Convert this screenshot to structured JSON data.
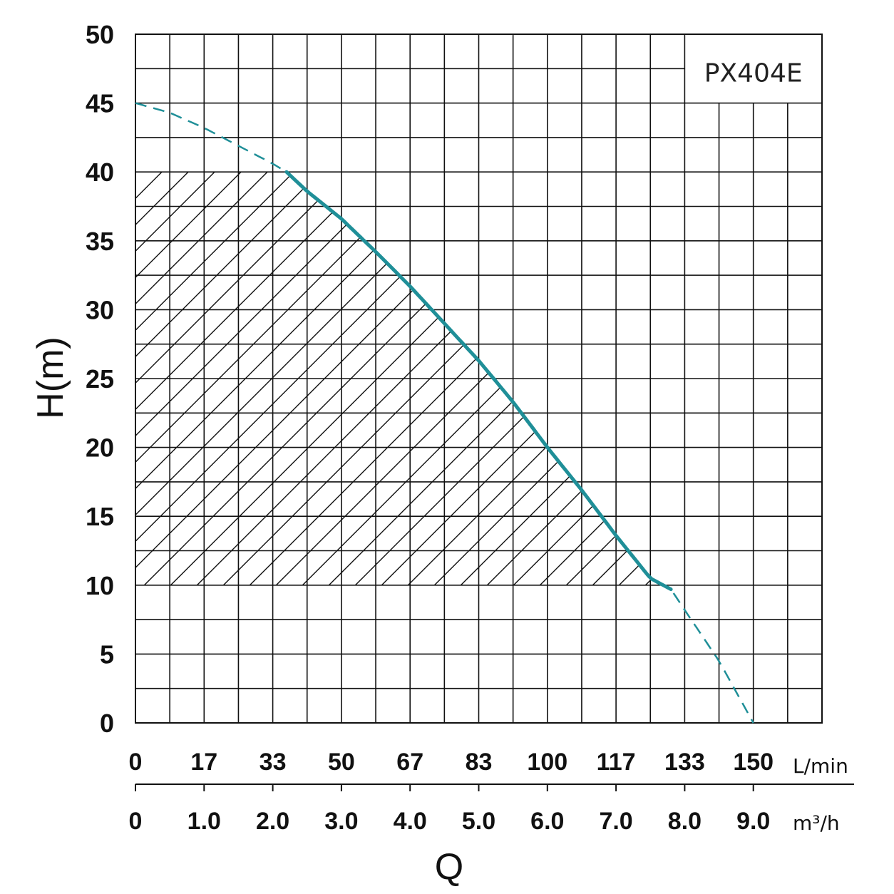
{
  "chart_data": {
    "type": "line",
    "model_label": "PX404E",
    "ylabel": "H(m)",
    "xlabel": "Q",
    "y_ticks": [
      "0",
      "5",
      "10",
      "15",
      "20",
      "25",
      "30",
      "35",
      "40",
      "45",
      "50"
    ],
    "ylim": [
      0,
      50
    ],
    "x_ticks_lmin": [
      "0",
      "17",
      "33",
      "50",
      "67",
      "83",
      "100",
      "117",
      "133",
      "150"
    ],
    "x_unit_lmin": "L/min",
    "x_ticks_m3h": [
      "0",
      "1.0",
      "2.0",
      "3.0",
      "4.0",
      "5.0",
      "6.0",
      "7.0",
      "8.0",
      "9.0"
    ],
    "x_unit_m3h": "m³/h",
    "xlim_m3h": [
      0,
      10
    ],
    "grid": true,
    "curve_color": "#1f8f98",
    "series": [
      {
        "x": [
          0,
          0.5,
          1.0,
          1.5,
          2.0,
          2.2,
          2.5,
          3.0,
          3.5,
          4.0,
          4.5,
          5.0,
          5.5,
          6.0,
          6.5,
          7.0,
          7.5,
          7.8,
          8.0,
          8.5,
          9.0
        ],
        "y": [
          45,
          44.3,
          43.2,
          41.9,
          40.6,
          40,
          38.6,
          36.6,
          34.2,
          31.7,
          29.0,
          26.3,
          23.3,
          20.0,
          16.9,
          13.6,
          10.5,
          9.7,
          8.2,
          4.5,
          0
        ]
      }
    ],
    "solid_range_m3h": [
      2.2,
      7.8
    ],
    "working_zone": {
      "x_from": 0,
      "y_from": 10,
      "y_to": 40
    }
  }
}
